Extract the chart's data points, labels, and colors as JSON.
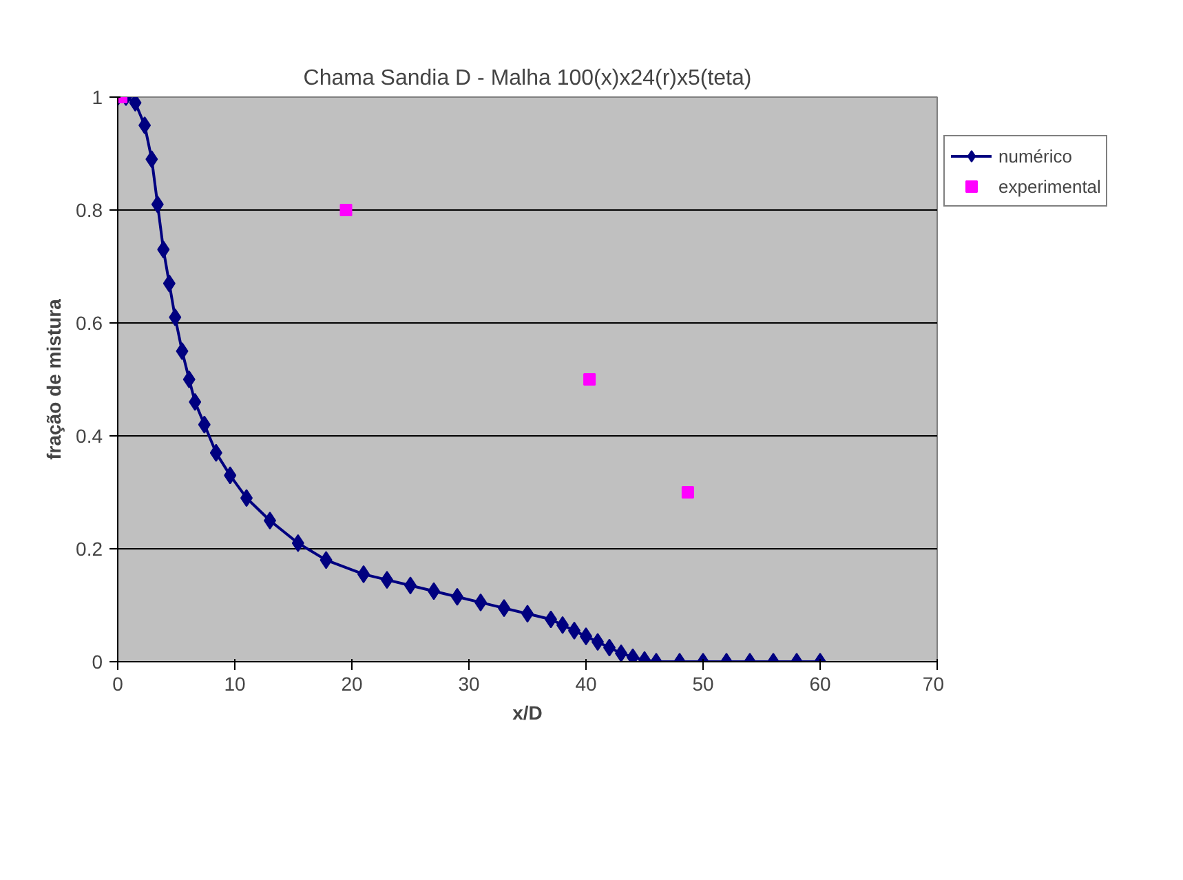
{
  "chart_data": {
    "type": "line",
    "title": "Chama Sandia D - Malha 100(x)x24(r)x5(teta)",
    "xlabel": "x/D",
    "ylabel": "fração de mistura",
    "xlim": [
      0,
      70
    ],
    "xticks": [
      0,
      10,
      20,
      30,
      40,
      50,
      60,
      70
    ],
    "ylim": [
      0,
      1
    ],
    "yticks": [
      0,
      0.2,
      0.4,
      0.6,
      0.8,
      1
    ],
    "grid": "y",
    "legend": "right",
    "series": [
      {
        "name": "numérico",
        "color": "#000080",
        "marker": "diamond",
        "x": [
          0,
          0.7,
          1.5,
          2.3,
          2.9,
          3.4,
          3.9,
          4.4,
          4.9,
          5.5,
          6.1,
          6.6,
          7.4,
          8.4,
          9.6,
          11,
          13,
          15.4,
          17.8,
          21,
          23,
          25,
          27,
          29,
          31,
          33,
          35,
          37,
          38,
          39,
          40,
          41,
          42,
          43,
          44,
          45,
          46,
          48,
          50,
          52,
          54,
          56,
          58,
          60
        ],
        "values": [
          1,
          1,
          0.99,
          0.95,
          0.89,
          0.81,
          0.73,
          0.67,
          0.61,
          0.55,
          0.5,
          0.46,
          0.42,
          0.37,
          0.33,
          0.29,
          0.25,
          0.21,
          0.18,
          0.155,
          0.145,
          0.135,
          0.125,
          0.115,
          0.105,
          0.095,
          0.085,
          0.075,
          0.065,
          0.055,
          0.045,
          0.035,
          0.025,
          0.015,
          0.008,
          0.003,
          0,
          0,
          0,
          0,
          0,
          0,
          0,
          0
        ]
      },
      {
        "name": "experimental",
        "type": "scatter",
        "color": "#ff00ff",
        "marker": "square",
        "x": [
          0.3,
          19.5,
          40.3,
          48.7
        ],
        "values": [
          1,
          0.8,
          0.5,
          0.3
        ]
      }
    ]
  }
}
